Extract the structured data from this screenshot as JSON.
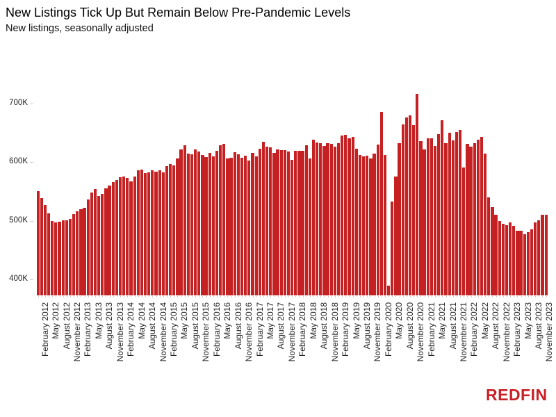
{
  "header": {
    "title": "New Listings Tick Up But Remain Below Pre-Pandemic Levels",
    "subtitle": "New listings, seasonally adjusted"
  },
  "chart_data": {
    "type": "bar",
    "title": "New Listings Tick Up But Remain Below Pre-Pandemic Levels",
    "subtitle": "New listings, seasonally adjusted",
    "xlabel": "",
    "ylabel": "",
    "bar_color": "#c52123",
    "grid": false,
    "legend": false,
    "ylim_thousands": [
      373,
      727
    ],
    "yticks": [
      {
        "label": "400K",
        "value": 400
      },
      {
        "label": "500K",
        "value": 500
      },
      {
        "label": "600K",
        "value": 600
      },
      {
        "label": "700K",
        "value": 700
      }
    ],
    "xtick_every_n_bars": 3,
    "xtick_labels": [
      "February 2012",
      "May 2012",
      "August 2012",
      "November 2012",
      "February 2013",
      "May 2013",
      "August 2013",
      "November 2013",
      "February 2014",
      "May 2014",
      "August 2014",
      "November 2014",
      "February 2015",
      "May 2015",
      "August 2015",
      "November 2015",
      "February 2016",
      "May 2016",
      "August 2016",
      "November 2016",
      "February 2017",
      "May 2017",
      "August 2017",
      "November 2017",
      "February 2018",
      "May 2018",
      "August 2018",
      "November 2018",
      "February 2019",
      "May 2019",
      "August 2019",
      "November 2019",
      "February 2020",
      "May 2020",
      "August 2020",
      "November 2020",
      "February 2021",
      "May 2021",
      "August 2021",
      "November 2021",
      "February 2022",
      "May 2022",
      "August 2022",
      "November 2022",
      "February 2023",
      "May 2023",
      "August 2023",
      "November 2023"
    ],
    "months": [
      "Feb 2012",
      "Mar 2012",
      "Apr 2012",
      "May 2012",
      "Jun 2012",
      "Jul 2012",
      "Aug 2012",
      "Sep 2012",
      "Oct 2012",
      "Nov 2012",
      "Dec 2012",
      "Jan 2013",
      "Feb 2013",
      "Mar 2013",
      "Apr 2013",
      "May 2013",
      "Jun 2013",
      "Jul 2013",
      "Aug 2013",
      "Sep 2013",
      "Oct 2013",
      "Nov 2013",
      "Dec 2013",
      "Jan 2014",
      "Feb 2014",
      "Mar 2014",
      "Apr 2014",
      "May 2014",
      "Jun 2014",
      "Jul 2014",
      "Aug 2014",
      "Sep 2014",
      "Oct 2014",
      "Nov 2014",
      "Dec 2014",
      "Jan 2015",
      "Feb 2015",
      "Mar 2015",
      "Apr 2015",
      "May 2015",
      "Jun 2015",
      "Jul 2015",
      "Aug 2015",
      "Sep 2015",
      "Oct 2015",
      "Nov 2015",
      "Dec 2015",
      "Jan 2016",
      "Feb 2016",
      "Mar 2016",
      "Apr 2016",
      "May 2016",
      "Jun 2016",
      "Jul 2016",
      "Aug 2016",
      "Sep 2016",
      "Oct 2016",
      "Nov 2016",
      "Dec 2016",
      "Jan 2017",
      "Feb 2017",
      "Mar 2017",
      "Apr 2017",
      "May 2017",
      "Jun 2017",
      "Jul 2017",
      "Aug 2017",
      "Sep 2017",
      "Oct 2017",
      "Nov 2017",
      "Dec 2017",
      "Jan 2018",
      "Feb 2018",
      "Mar 2018",
      "Apr 2018",
      "May 2018",
      "Jun 2018",
      "Jul 2018",
      "Aug 2018",
      "Sep 2018",
      "Oct 2018",
      "Nov 2018",
      "Dec 2018",
      "Jan 2019",
      "Feb 2019",
      "Mar 2019",
      "Apr 2019",
      "May 2019",
      "Jun 2019",
      "Jul 2019",
      "Aug 2019",
      "Sep 2019",
      "Oct 2019",
      "Nov 2019",
      "Dec 2019",
      "Jan 2020",
      "Feb 2020",
      "Mar 2020",
      "Apr 2020",
      "May 2020",
      "Jun 2020",
      "Jul 2020",
      "Aug 2020",
      "Sep 2020",
      "Oct 2020",
      "Nov 2020",
      "Dec 2020",
      "Jan 2021",
      "Feb 2021",
      "Mar 2021",
      "Apr 2021",
      "May 2021",
      "Jun 2021",
      "Jul 2021",
      "Aug 2021",
      "Sep 2021",
      "Oct 2021",
      "Nov 2021",
      "Dec 2021",
      "Jan 2022",
      "Feb 2022",
      "Mar 2022",
      "Apr 2022",
      "May 2022",
      "Jun 2022",
      "Jul 2022",
      "Aug 2022",
      "Sep 2022",
      "Oct 2022",
      "Nov 2022",
      "Dec 2022",
      "Jan 2023",
      "Feb 2023",
      "Mar 2023",
      "Apr 2023",
      "May 2023",
      "Jun 2023",
      "Jul 2023",
      "Aug 2023",
      "Sep 2023",
      "Oct 2023",
      "Nov 2023",
      "Dec 2023"
    ],
    "values_thousands": [
      551,
      539,
      527,
      513,
      500,
      498,
      499,
      501,
      501,
      503,
      512,
      516,
      520,
      522,
      537,
      548,
      554,
      543,
      546,
      556,
      560,
      566,
      570,
      575,
      576,
      573,
      567,
      576,
      586,
      587,
      582,
      583,
      586,
      584,
      586,
      583,
      593,
      597,
      595,
      607,
      622,
      629,
      615,
      614,
      622,
      618,
      612,
      609,
      616,
      610,
      620,
      629,
      631,
      607,
      608,
      617,
      614,
      608,
      611,
      603,
      616,
      610,
      623,
      635,
      627,
      625,
      616,
      622,
      621,
      621,
      618,
      604,
      619,
      620,
      619,
      629,
      607,
      639,
      634,
      632,
      628,
      633,
      631,
      627,
      632,
      645,
      647,
      641,
      643,
      623,
      612,
      610,
      611,
      607,
      615,
      630,
      686,
      612,
      390,
      533,
      576,
      633,
      664,
      676,
      680,
      663,
      717,
      636,
      622,
      641,
      641,
      628,
      648,
      672,
      632,
      650,
      637,
      652,
      655,
      591,
      631,
      626,
      632,
      639,
      643,
      615,
      540,
      524,
      510,
      500,
      495,
      493,
      498,
      491,
      483,
      483,
      477,
      481,
      485,
      498,
      501,
      510,
      510
    ]
  },
  "footer": {
    "logo_text": "REDFIN"
  }
}
